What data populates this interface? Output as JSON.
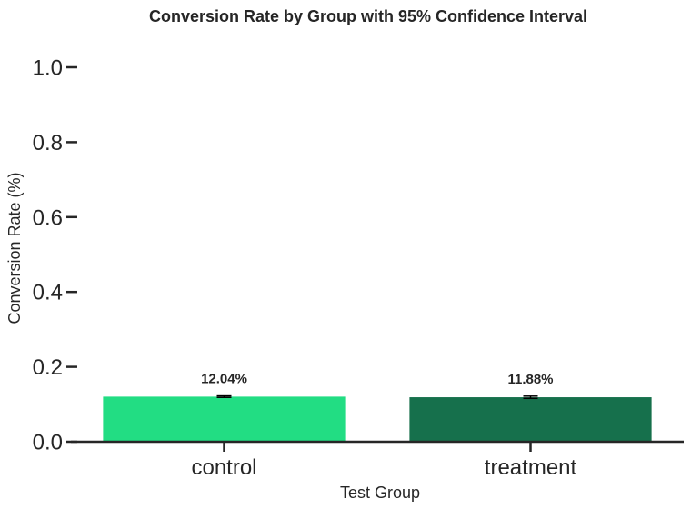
{
  "chart_data": {
    "type": "bar",
    "title": "Conversion Rate by Group with 95% Confidence Interval",
    "xlabel": "Test Group",
    "ylabel": "Conversion Rate (%)",
    "categories": [
      "control",
      "treatment"
    ],
    "values": [
      0.1204,
      0.1188
    ],
    "data_labels": [
      "12.04%",
      "11.88%"
    ],
    "ci_half_width": [
      0.002,
      0.003
    ],
    "colors": [
      "#22dd83",
      "#16704c"
    ],
    "ylim": [
      0,
      1.05
    ],
    "yticks": [
      0.0,
      0.2,
      0.4,
      0.6,
      0.8,
      1.0
    ],
    "ytick_labels": [
      "0.0",
      "0.2",
      "0.4",
      "0.6",
      "0.8",
      "1.0"
    ],
    "grid": false,
    "legend": "none"
  }
}
